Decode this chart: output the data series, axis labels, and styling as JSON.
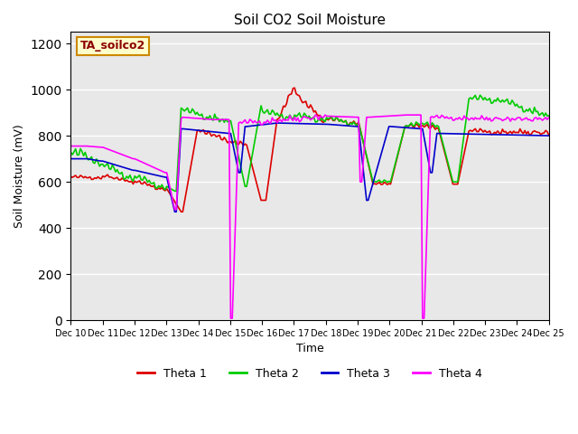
{
  "title": "Soil CO2 Soil Moisture",
  "xlabel": "Time",
  "ylabel": "Soil Moisture (mV)",
  "annotation": "TA_soilco2",
  "ylim": [
    0,
    1250
  ],
  "yticks": [
    0,
    200,
    400,
    600,
    800,
    1000,
    1200
  ],
  "bg_color": "#e8e8e8",
  "fig_color": "#ffffff",
  "colors": {
    "Theta 1": "#dd0000",
    "Theta 2": "#00cc00",
    "Theta 3": "#0000cc",
    "Theta 4": "#ff00ff"
  },
  "legend_labels": [
    "Theta 1",
    "Theta 2",
    "Theta 3",
    "Theta 4"
  ],
  "x_tick_labels": [
    "Dec 10",
    "Dec 11",
    "Dec 12",
    "Dec 13",
    "Dec 14",
    "Dec 15",
    "Dec 16",
    "Dec 17",
    "Dec 18",
    "Dec 19",
    "Dec 20",
    "Dec 21",
    "Dec 22",
    "Dec 23",
    "Dec 24",
    "Dec 25"
  ],
  "linewidth": 1.2
}
